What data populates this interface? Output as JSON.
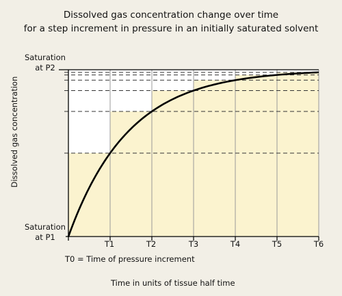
{
  "title": {
    "line1": "Dissolved gas concentration change over time",
    "line2": "for a step increment in pressure in an initially saturated solvent"
  },
  "y_axis": {
    "label": "Dissolved gas concentration",
    "top_label": {
      "line1": "Saturation",
      "line2": "at P2"
    },
    "bottom_label": {
      "line1": "Saturation",
      "line2": "at P1"
    }
  },
  "x_axis": {
    "ticks": [
      "T1",
      "T2",
      "T3",
      "T4",
      "T5",
      "T6"
    ],
    "t0_note": "T0 = Time of pressure increment",
    "label": "Time in units of tissue half time"
  },
  "colors": {
    "background": "#f2efe6",
    "step_fill": "#fbf3cf",
    "plot_area": "#ffffff",
    "curve": "#000000"
  },
  "chart_data": {
    "type": "line",
    "x": [
      0,
      1,
      2,
      3,
      4,
      5,
      6
    ],
    "series": [
      {
        "values": [
          0,
          0.5,
          0.75,
          0.875,
          0.9375,
          0.96875,
          0.984375
        ]
      }
    ],
    "guide_levels": [
      0.5,
      0.75,
      0.875,
      0.9375,
      0.96875,
      0.984375
    ],
    "ylim": [
      0,
      1
    ],
    "xlim": [
      0,
      6
    ]
  }
}
